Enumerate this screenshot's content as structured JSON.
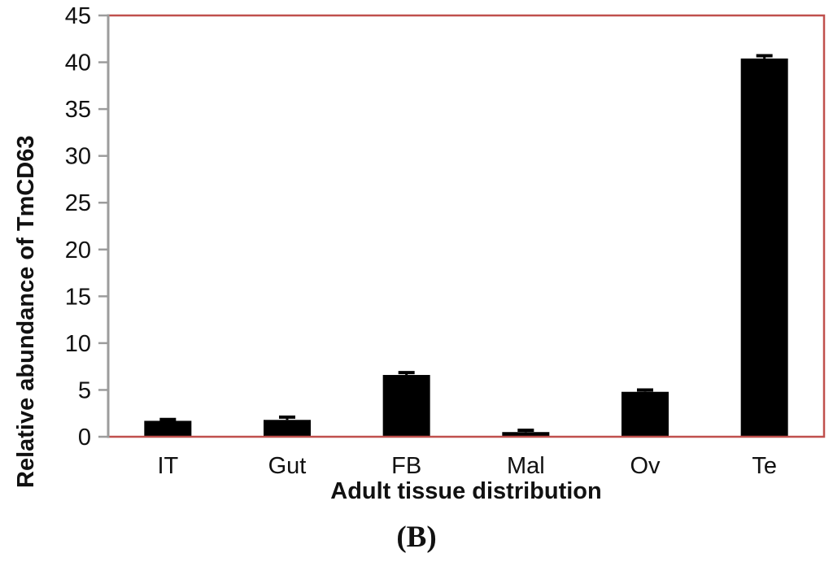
{
  "figure": {
    "caption": "(B)"
  },
  "chart_data": {
    "type": "bar",
    "title": "",
    "xlabel": "Adult tissue distribution",
    "ylabel": "Relative abundance of TmCD63",
    "categories": [
      "IT",
      "Gut",
      "FB",
      "Mal",
      "Ov",
      "Te"
    ],
    "values": [
      1.7,
      1.8,
      6.6,
      0.5,
      4.8,
      40.4
    ],
    "errors": [
      0.15,
      0.3,
      0.25,
      0.2,
      0.2,
      0.3
    ],
    "ylim": [
      0,
      45
    ],
    "yticks": [
      0,
      5,
      10,
      15,
      20,
      25,
      30,
      35,
      40,
      45
    ],
    "grid": false,
    "legend_position": "none",
    "colors": {
      "bar": "#000000",
      "plot_border": "#C0504D",
      "axis": "#9C9C9C",
      "text": "#111111"
    }
  }
}
